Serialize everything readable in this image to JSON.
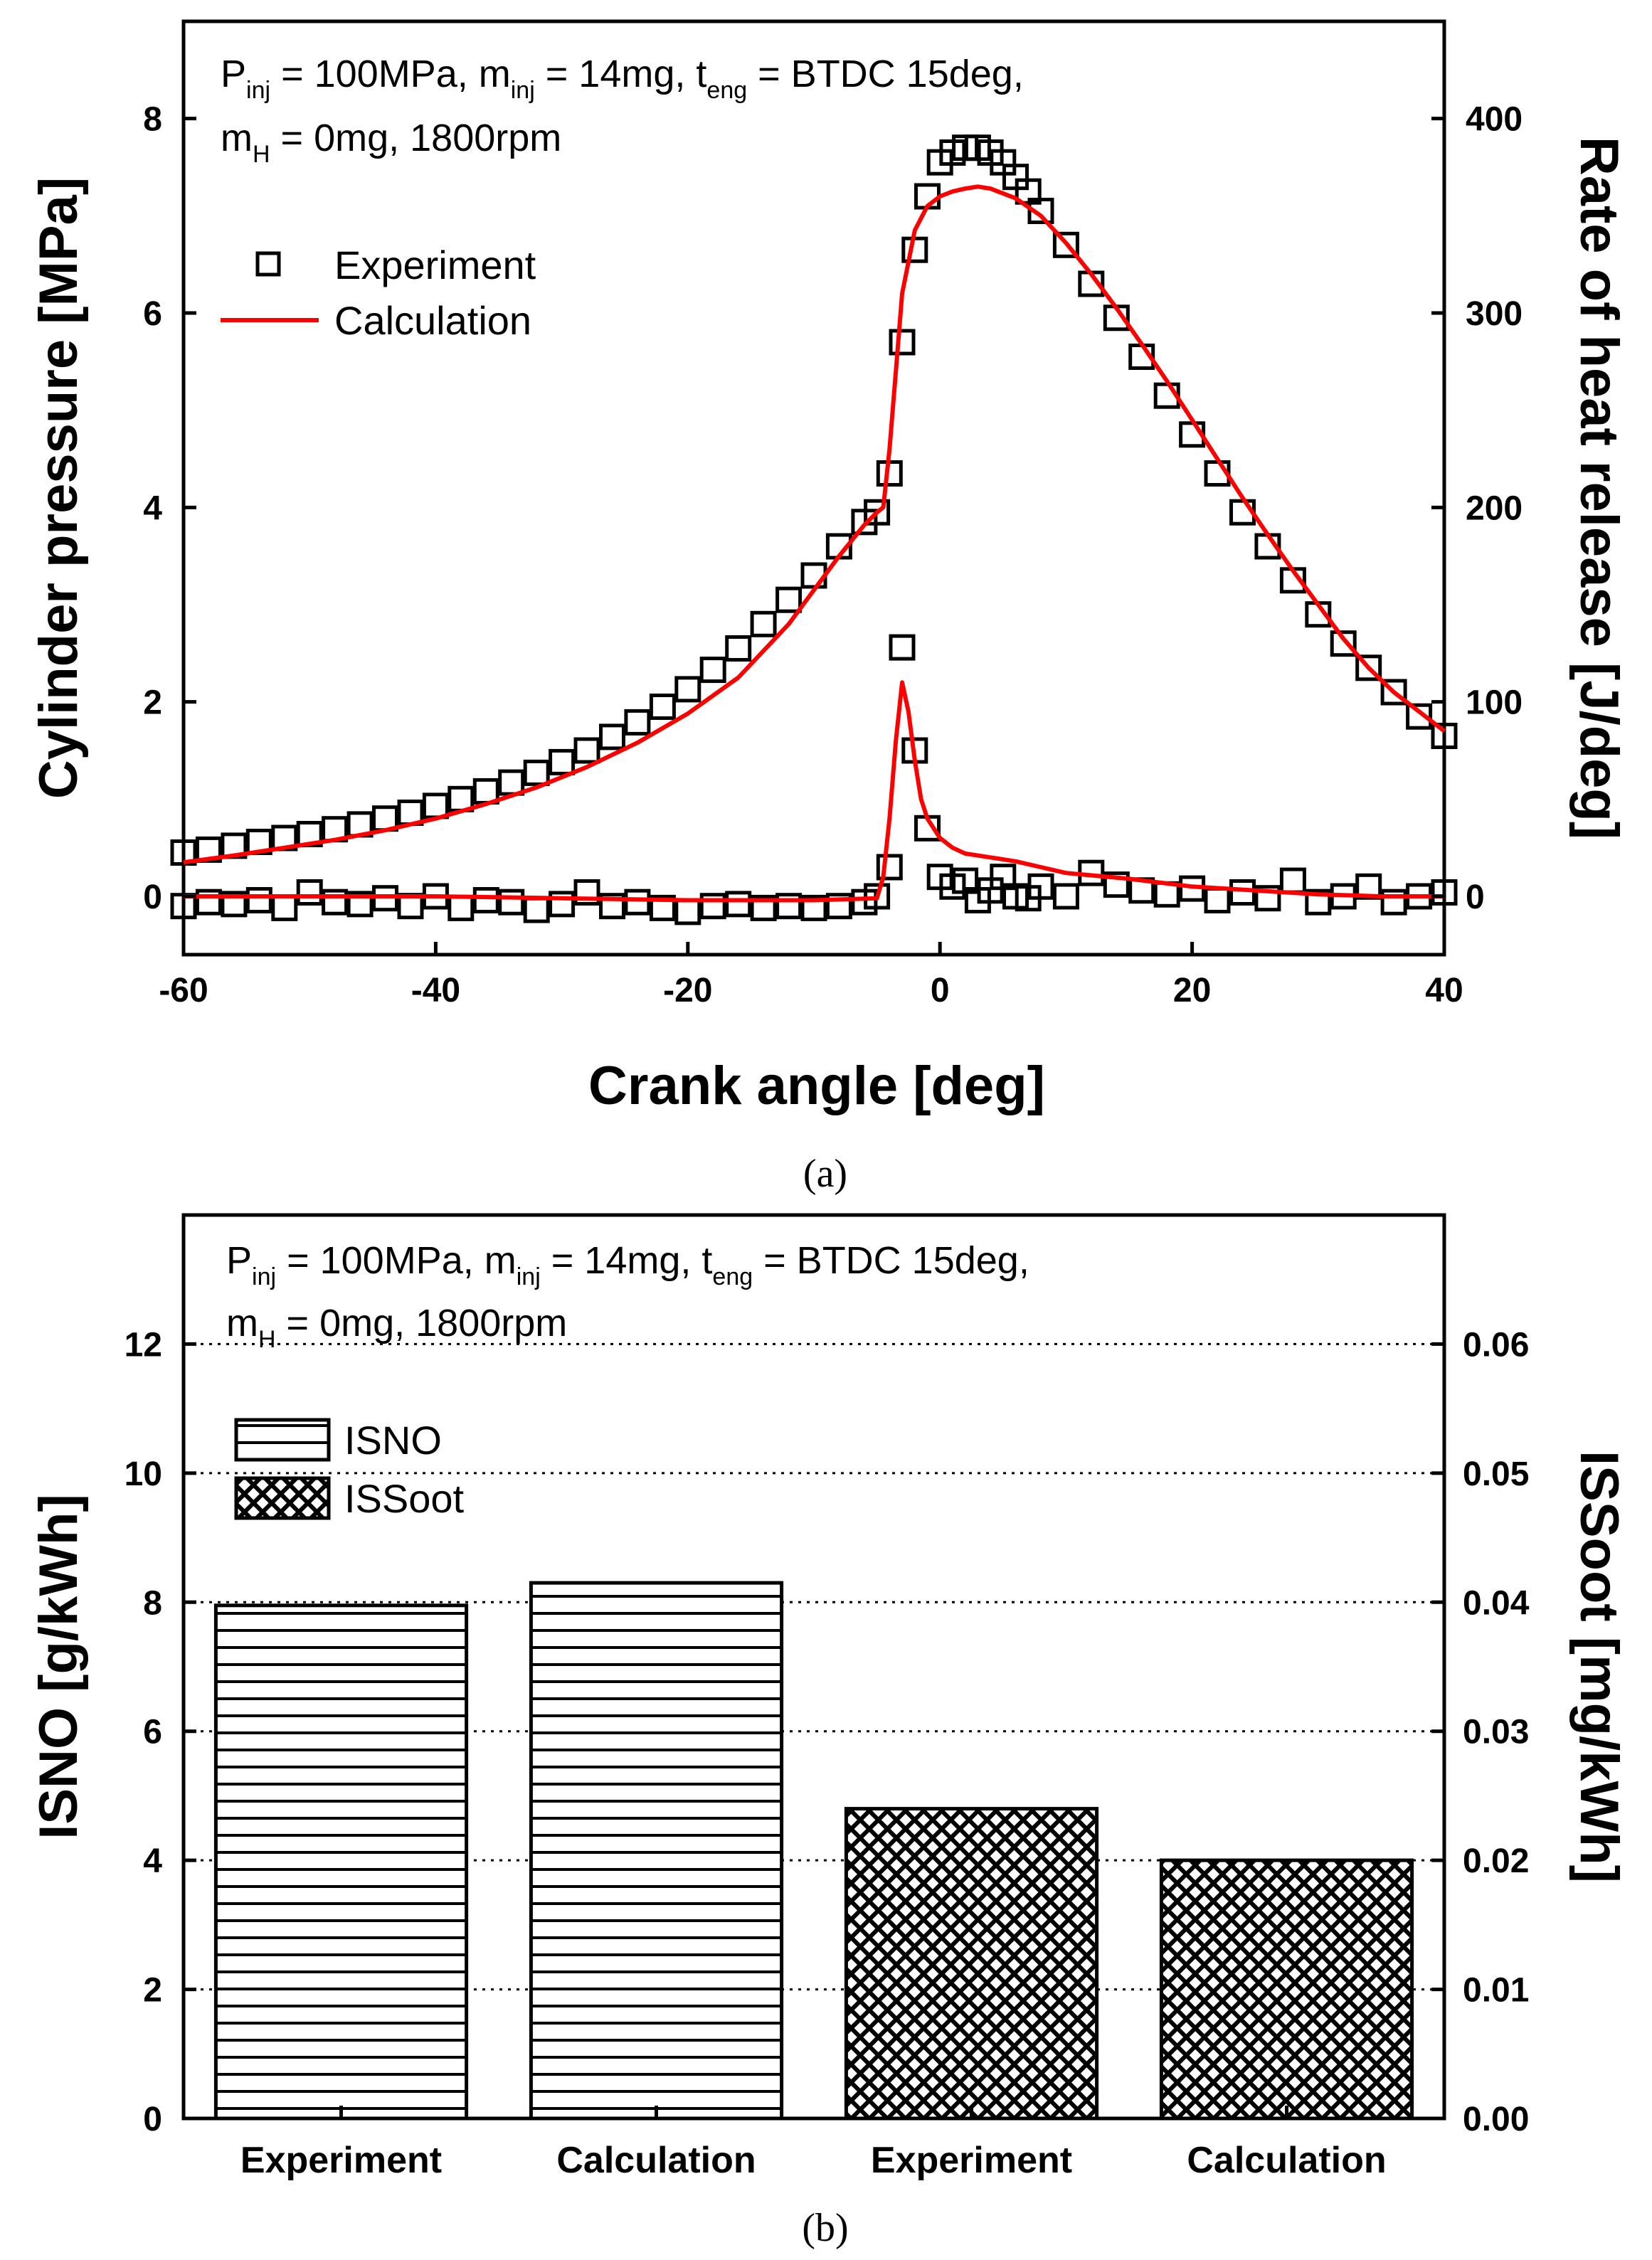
{
  "chart_data": [
    {
      "type": "line",
      "caption": "(a)",
      "annotation": {
        "line1": [
          {
            "text": "P",
            "sub": "inj"
          },
          {
            "text": " = 100MPa, m",
            "sub": "inj"
          },
          {
            "text": " = 14mg, t",
            "sub": "eng"
          },
          {
            "text": " = BTDC 15deg,",
            "sub": ""
          }
        ],
        "line2": [
          {
            "text": "m",
            "sub": "H"
          },
          {
            "text": " = 0mg, 1800rpm",
            "sub": ""
          }
        ]
      },
      "xlabel": "Crank angle [deg]",
      "ylabel_left": "Cylinder pressure [MPa]",
      "ylabel_right": "Rate of heat release [J/deg]",
      "xlim": [
        -60,
        40
      ],
      "ylim_left": [
        -0.6,
        9.0
      ],
      "ylim_right": [
        -30,
        450
      ],
      "xticks": [
        -60,
        -40,
        -20,
        0,
        20,
        40
      ],
      "yticks_left": [
        0,
        2,
        4,
        6,
        8
      ],
      "yticks_right": [
        0,
        100,
        200,
        300,
        400
      ],
      "xtick_labels": [
        "-60",
        "-40",
        "-20",
        "0",
        "20",
        "40"
      ],
      "ytick_labels_left": [
        "0",
        "2",
        "4",
        "6",
        "8"
      ],
      "ytick_labels_right": [
        "0",
        "100",
        "200",
        "300",
        "400"
      ],
      "legend": {
        "position": "top-left",
        "entries": [
          "Experiment",
          "Calculation"
        ]
      },
      "series": [
        {
          "name": "Experiment (pressure)",
          "axis": "left",
          "style": "open-square",
          "color": "#000000",
          "x": [
            -60,
            -58,
            -56,
            -54,
            -52,
            -50,
            -48,
            -46,
            -44,
            -42,
            -40,
            -38,
            -36,
            -34,
            -32,
            -30,
            -28,
            -26,
            -24,
            -22,
            -20,
            -18,
            -16,
            -14,
            -12,
            -10,
            -8,
            -6,
            -5,
            -4,
            -3,
            -2,
            -1,
            0,
            1,
            2,
            3,
            4,
            5,
            6,
            7,
            8,
            10,
            12,
            14,
            16,
            18,
            20,
            22,
            24,
            26,
            28,
            30,
            32,
            34,
            36,
            38,
            40
          ],
          "y": [
            0.45,
            0.48,
            0.52,
            0.56,
            0.6,
            0.64,
            0.69,
            0.74,
            0.8,
            0.86,
            0.93,
            1.0,
            1.08,
            1.17,
            1.27,
            1.38,
            1.5,
            1.64,
            1.79,
            1.95,
            2.13,
            2.33,
            2.55,
            2.8,
            3.05,
            3.3,
            3.6,
            3.85,
            3.95,
            4.35,
            5.7,
            6.65,
            7.2,
            7.55,
            7.65,
            7.7,
            7.7,
            7.65,
            7.55,
            7.4,
            7.25,
            7.05,
            6.7,
            6.3,
            5.95,
            5.55,
            5.15,
            4.75,
            4.35,
            3.95,
            3.6,
            3.25,
            2.9,
            2.6,
            2.35,
            2.1,
            1.85,
            1.65
          ]
        },
        {
          "name": "Calculation (pressure)",
          "axis": "left",
          "style": "line",
          "color": "#ff0000",
          "x": [
            -60,
            -56,
            -52,
            -48,
            -44,
            -40,
            -36,
            -32,
            -28,
            -24,
            -20,
            -16,
            -12,
            -8,
            -6,
            -5,
            -4.5,
            -4,
            -3.5,
            -3,
            -2,
            -1,
            0,
            1,
            2,
            3,
            4,
            6,
            8,
            10,
            12,
            14,
            16,
            18,
            20,
            22,
            24,
            26,
            28,
            30,
            32,
            34,
            36,
            38,
            40
          ],
          "y": [
            0.35,
            0.42,
            0.5,
            0.58,
            0.68,
            0.8,
            0.95,
            1.12,
            1.33,
            1.58,
            1.88,
            2.25,
            2.8,
            3.5,
            3.82,
            3.95,
            4.0,
            4.6,
            5.4,
            6.2,
            6.85,
            7.1,
            7.2,
            7.25,
            7.28,
            7.3,
            7.28,
            7.18,
            7.0,
            6.72,
            6.4,
            6.05,
            5.68,
            5.3,
            4.9,
            4.5,
            4.1,
            3.72,
            3.35,
            3.0,
            2.65,
            2.35,
            2.1,
            1.9,
            1.7
          ]
        },
        {
          "name": "Experiment (heat release)",
          "axis": "right",
          "style": "open-square",
          "color": "#000000",
          "x": [
            -60,
            -58,
            -56,
            -54,
            -52,
            -50,
            -48,
            -46,
            -44,
            -42,
            -40,
            -38,
            -36,
            -34,
            -32,
            -30,
            -28,
            -26,
            -24,
            -22,
            -20,
            -18,
            -16,
            -14,
            -12,
            -10,
            -8,
            -6,
            -5,
            -4,
            -3,
            -2,
            -1,
            0,
            1,
            2,
            3,
            4,
            5,
            6,
            7,
            8,
            10,
            12,
            14,
            16,
            18,
            20,
            22,
            24,
            26,
            28,
            30,
            32,
            34,
            36,
            38,
            40
          ],
          "y": [
            -5,
            -3,
            -4,
            -2,
            -6,
            2,
            -3,
            -4,
            -1,
            -5,
            0,
            -6,
            -2,
            -3,
            -7,
            -4,
            2,
            -5,
            -3,
            -6,
            -8,
            -5,
            -4,
            -6,
            -5,
            -6,
            -5,
            -3,
            0,
            15,
            128,
            75,
            35,
            10,
            5,
            8,
            -2,
            3,
            10,
            0,
            -1,
            5,
            0,
            12,
            6,
            3,
            1,
            4,
            -2,
            2,
            -1,
            8,
            -3,
            0,
            5,
            -3,
            0,
            2
          ]
        },
        {
          "name": "Calculation (heat release)",
          "axis": "right",
          "style": "line",
          "color": "#ff0000",
          "x": [
            -60,
            -50,
            -40,
            -30,
            -20,
            -10,
            -5,
            -4.5,
            -4,
            -3.5,
            -3,
            -2.5,
            -2,
            -1.5,
            -1,
            0,
            1,
            2,
            4,
            6,
            8,
            10,
            15,
            20,
            25,
            30,
            35,
            40
          ],
          "y": [
            0,
            0,
            0,
            -1,
            -2,
            -2,
            -1,
            10,
            40,
            80,
            110,
            95,
            70,
            50,
            40,
            30,
            25,
            22,
            20,
            18,
            15,
            12,
            9,
            5,
            3,
            1,
            0,
            0
          ]
        }
      ]
    },
    {
      "type": "bar",
      "caption": "(b)",
      "annotation": {
        "line1": [
          {
            "text": "P",
            "sub": "inj"
          },
          {
            "text": " = 100MPa, m",
            "sub": "inj"
          },
          {
            "text": " = 14mg, t",
            "sub": "eng"
          },
          {
            "text": " = BTDC 15deg,",
            "sub": ""
          }
        ],
        "line2": [
          {
            "text": "m",
            "sub": "H"
          },
          {
            "text": " = 0mg, 1800rpm",
            "sub": ""
          }
        ]
      },
      "categories": [
        "Experiment",
        "Calculation",
        "Experiment",
        "Calculation"
      ],
      "ylabel_left": "ISNO [g/kWh]",
      "ylabel_right": "ISSoot [mg/kWh]",
      "ylim_left": [
        0,
        14
      ],
      "ylim_right": [
        0,
        0.07
      ],
      "yticks_left": [
        0,
        2,
        4,
        6,
        8,
        10,
        12
      ],
      "yticks_right": [
        0,
        0.01,
        0.02,
        0.03,
        0.04,
        0.05,
        0.06
      ],
      "ytick_labels_left": [
        "0",
        "2",
        "4",
        "6",
        "8",
        "10",
        "12"
      ],
      "ytick_labels_right": [
        "0.00",
        "0.01",
        "0.02",
        "0.03",
        "0.04",
        "0.05",
        "0.06"
      ],
      "grid": "horizontal dotted",
      "legend": {
        "position": "top-left",
        "entries": [
          "ISNO",
          "ISSoot"
        ]
      },
      "series": [
        {
          "name": "ISNO",
          "axis": "left",
          "pattern": "horizontal-lines",
          "values": [
            7.95,
            8.3,
            null,
            null
          ]
        },
        {
          "name": "ISSoot",
          "axis": "right",
          "pattern": "crosshatch",
          "values": [
            null,
            null,
            0.024,
            0.02
          ]
        }
      ]
    }
  ]
}
